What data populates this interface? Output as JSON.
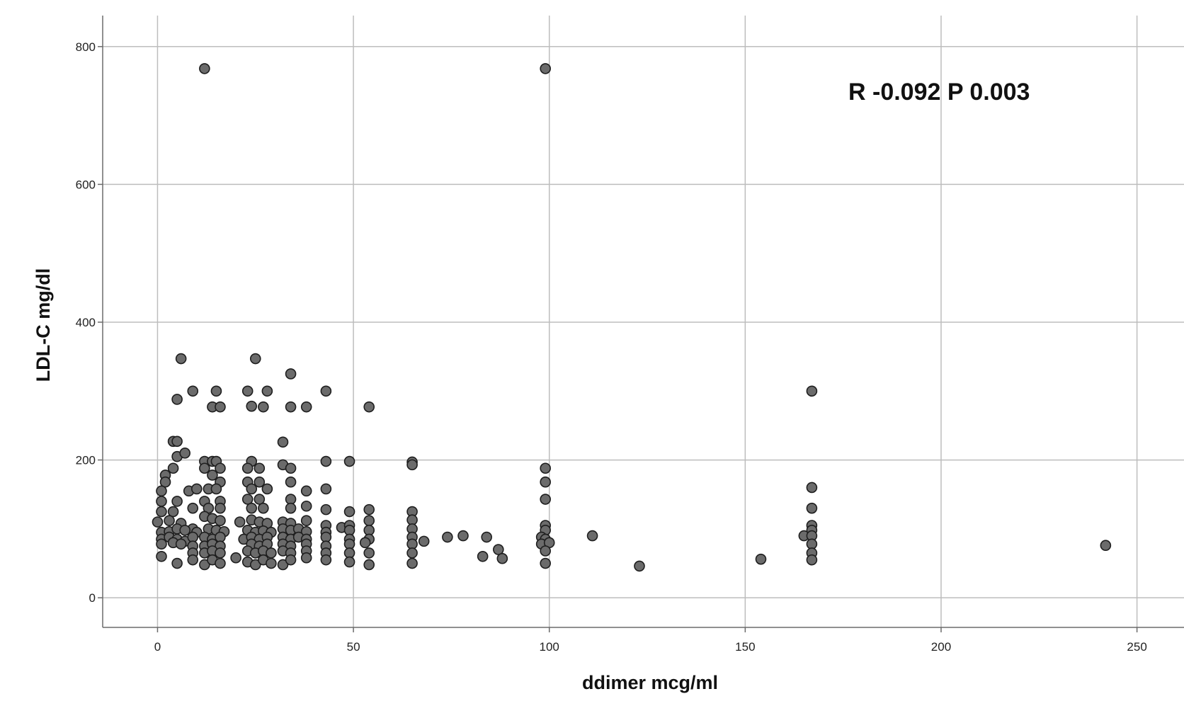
{
  "chart_data": {
    "type": "scatter",
    "xlabel": "ddimer mcg/ml",
    "ylabel": "LDL-C mg/dl",
    "annotation": "R -0.092 P 0.003",
    "xlim": [
      -14,
      262
    ],
    "ylim": [
      -43,
      845
    ],
    "x_ticks": [
      0,
      50,
      100,
      150,
      200,
      250
    ],
    "y_ticks": [
      0,
      200,
      400,
      600,
      800
    ],
    "grid": true,
    "colors": {
      "marker_fill": "#6b6b6b",
      "marker_edge": "#1e1e1e",
      "grid": "#bdbdbd",
      "axis": "#6b6b6b"
    },
    "points": [
      [
        12,
        768
      ],
      [
        99,
        768
      ],
      [
        6,
        347
      ],
      [
        25,
        347
      ],
      [
        34,
        325
      ],
      [
        5,
        288
      ],
      [
        9,
        300
      ],
      [
        15,
        300
      ],
      [
        23,
        300
      ],
      [
        28,
        300
      ],
      [
        43,
        300
      ],
      [
        167,
        300
      ],
      [
        14,
        277
      ],
      [
        16,
        277
      ],
      [
        24,
        278
      ],
      [
        27,
        277
      ],
      [
        34,
        277
      ],
      [
        38,
        277
      ],
      [
        54,
        277
      ],
      [
        4,
        227
      ],
      [
        5,
        227
      ],
      [
        32,
        226
      ],
      [
        5,
        205
      ],
      [
        7,
        210
      ],
      [
        12,
        198
      ],
      [
        14,
        198
      ],
      [
        15,
        198
      ],
      [
        24,
        198
      ],
      [
        32,
        193
      ],
      [
        43,
        198
      ],
      [
        49,
        198
      ],
      [
        65,
        197
      ],
      [
        2,
        178
      ],
      [
        4,
        188
      ],
      [
        12,
        188
      ],
      [
        16,
        188
      ],
      [
        23,
        188
      ],
      [
        26,
        188
      ],
      [
        34,
        188
      ],
      [
        99,
        188
      ],
      [
        65,
        193
      ],
      [
        2,
        168
      ],
      [
        14,
        178
      ],
      [
        16,
        168
      ],
      [
        23,
        168
      ],
      [
        26,
        168
      ],
      [
        34,
        168
      ],
      [
        99,
        168
      ],
      [
        1,
        155
      ],
      [
        8,
        155
      ],
      [
        10,
        158
      ],
      [
        13,
        158
      ],
      [
        15,
        158
      ],
      [
        24,
        158
      ],
      [
        28,
        158
      ],
      [
        38,
        155
      ],
      [
        43,
        158
      ],
      [
        167,
        160
      ],
      [
        1,
        140
      ],
      [
        5,
        140
      ],
      [
        12,
        140
      ],
      [
        16,
        140
      ],
      [
        23,
        143
      ],
      [
        26,
        143
      ],
      [
        34,
        143
      ],
      [
        99,
        143
      ],
      [
        1,
        125
      ],
      [
        4,
        125
      ],
      [
        9,
        130
      ],
      [
        13,
        130
      ],
      [
        16,
        130
      ],
      [
        24,
        130
      ],
      [
        27,
        130
      ],
      [
        34,
        130
      ],
      [
        38,
        133
      ],
      [
        43,
        128
      ],
      [
        49,
        125
      ],
      [
        54,
        128
      ],
      [
        65,
        125
      ],
      [
        167,
        130
      ],
      [
        0,
        110
      ],
      [
        3,
        112
      ],
      [
        6,
        108
      ],
      [
        9,
        100
      ],
      [
        12,
        118
      ],
      [
        14,
        115
      ],
      [
        16,
        112
      ],
      [
        21,
        110
      ],
      [
        24,
        113
      ],
      [
        26,
        110
      ],
      [
        28,
        108
      ],
      [
        32,
        110
      ],
      [
        34,
        108
      ],
      [
        38,
        112
      ],
      [
        43,
        105
      ],
      [
        47,
        102
      ],
      [
        49,
        105
      ],
      [
        54,
        112
      ],
      [
        65,
        113
      ],
      [
        99,
        105
      ],
      [
        167,
        105
      ],
      [
        1,
        95
      ],
      [
        3,
        96
      ],
      [
        5,
        100
      ],
      [
        7,
        98
      ],
      [
        10,
        95
      ],
      [
        13,
        100
      ],
      [
        15,
        98
      ],
      [
        17,
        96
      ],
      [
        23,
        98
      ],
      [
        25,
        95
      ],
      [
        27,
        97
      ],
      [
        29,
        95
      ],
      [
        32,
        100
      ],
      [
        34,
        98
      ],
      [
        36,
        100
      ],
      [
        38,
        96
      ],
      [
        43,
        95
      ],
      [
        49,
        98
      ],
      [
        54,
        98
      ],
      [
        65,
        100
      ],
      [
        99,
        98
      ],
      [
        167,
        98
      ],
      [
        1,
        85
      ],
      [
        3,
        88
      ],
      [
        5,
        85
      ],
      [
        7,
        82
      ],
      [
        9,
        88
      ],
      [
        12,
        88
      ],
      [
        14,
        85
      ],
      [
        16,
        88
      ],
      [
        22,
        85
      ],
      [
        24,
        88
      ],
      [
        26,
        85
      ],
      [
        28,
        88
      ],
      [
        32,
        88
      ],
      [
        34,
        85
      ],
      [
        36,
        88
      ],
      [
        38,
        85
      ],
      [
        43,
        88
      ],
      [
        49,
        85
      ],
      [
        54,
        85
      ],
      [
        65,
        88
      ],
      [
        74,
        88
      ],
      [
        78,
        90
      ],
      [
        84,
        88
      ],
      [
        98,
        88
      ],
      [
        99,
        85
      ],
      [
        111,
        90
      ],
      [
        165,
        90
      ],
      [
        167,
        90
      ],
      [
        1,
        78
      ],
      [
        4,
        80
      ],
      [
        6,
        78
      ],
      [
        9,
        75
      ],
      [
        12,
        75
      ],
      [
        14,
        78
      ],
      [
        16,
        75
      ],
      [
        24,
        78
      ],
      [
        26,
        75
      ],
      [
        28,
        78
      ],
      [
        32,
        78
      ],
      [
        34,
        75
      ],
      [
        38,
        78
      ],
      [
        43,
        75
      ],
      [
        49,
        78
      ],
      [
        53,
        80
      ],
      [
        65,
        78
      ],
      [
        68,
        82
      ],
      [
        98,
        78
      ],
      [
        100,
        80
      ],
      [
        167,
        78
      ],
      [
        242,
        76
      ],
      [
        1,
        60
      ],
      [
        9,
        65
      ],
      [
        12,
        65
      ],
      [
        14,
        68
      ],
      [
        16,
        65
      ],
      [
        23,
        68
      ],
      [
        25,
        65
      ],
      [
        27,
        68
      ],
      [
        29,
        65
      ],
      [
        32,
        68
      ],
      [
        34,
        65
      ],
      [
        38,
        68
      ],
      [
        43,
        65
      ],
      [
        49,
        65
      ],
      [
        54,
        65
      ],
      [
        65,
        65
      ],
      [
        87,
        70
      ],
      [
        99,
        68
      ],
      [
        167,
        65
      ],
      [
        5,
        50
      ],
      [
        9,
        55
      ],
      [
        12,
        48
      ],
      [
        14,
        55
      ],
      [
        16,
        50
      ],
      [
        20,
        58
      ],
      [
        23,
        52
      ],
      [
        25,
        48
      ],
      [
        27,
        55
      ],
      [
        29,
        50
      ],
      [
        32,
        48
      ],
      [
        34,
        55
      ],
      [
        38,
        58
      ],
      [
        43,
        55
      ],
      [
        49,
        52
      ],
      [
        54,
        48
      ],
      [
        65,
        50
      ],
      [
        83,
        60
      ],
      [
        88,
        57
      ],
      [
        99,
        50
      ],
      [
        123,
        46
      ],
      [
        154,
        56
      ],
      [
        167,
        55
      ]
    ]
  }
}
